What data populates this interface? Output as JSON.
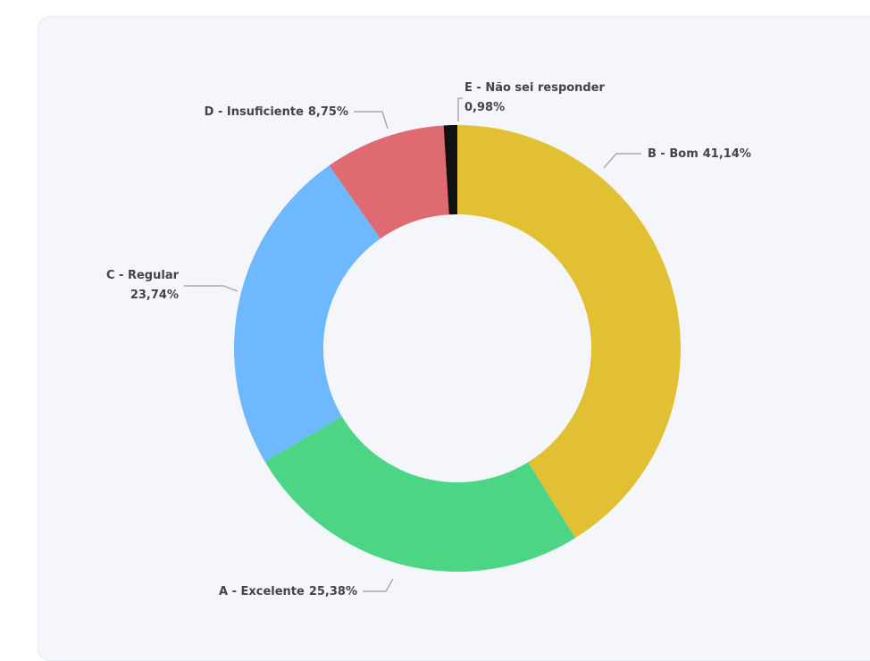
{
  "chart_data": {
    "type": "donut",
    "categories": [
      "B - Bom",
      "A - Excelente",
      "C - Regular",
      "D - Insuficiente",
      "E - Não sei responder"
    ],
    "values": [
      41.14,
      25.38,
      23.74,
      8.75,
      0.98
    ],
    "value_labels": [
      "41,14%",
      "25,38%",
      "23,74%",
      "8,75%",
      "0,98%"
    ],
    "colors": [
      "#e1c033",
      "#4cd585",
      "#6db8ff",
      "#e06a72",
      "#111111"
    ]
  }
}
